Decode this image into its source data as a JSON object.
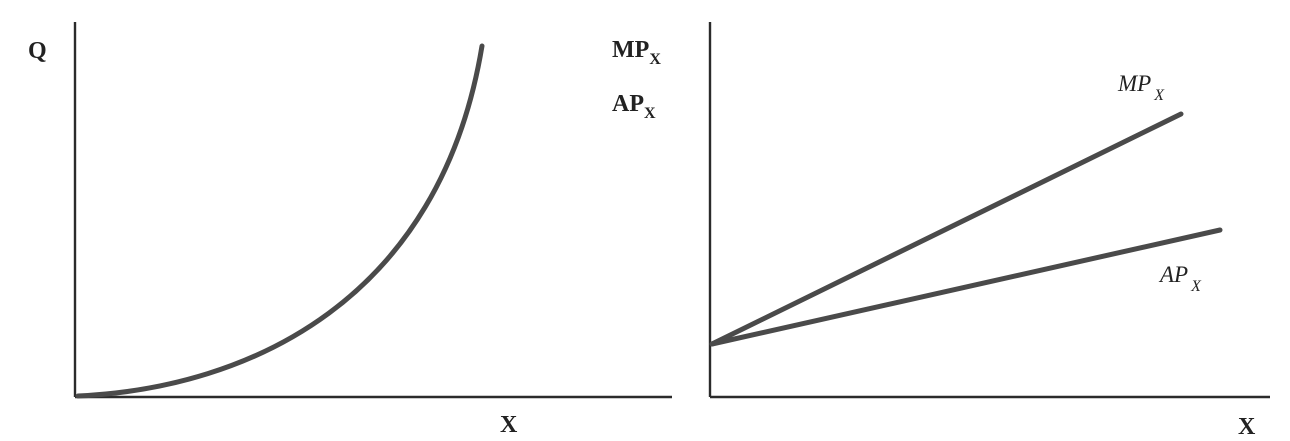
{
  "left_panel": {
    "y_axis_label": "Q",
    "x_axis_label": "X"
  },
  "right_panel": {
    "y_axis_label_1_main": "MP",
    "y_axis_label_1_sub": "X",
    "y_axis_label_2_main": "AP",
    "y_axis_label_2_sub": "X",
    "x_axis_label": "X",
    "mp_curve_label_main": "MP",
    "mp_curve_label_sub": "X",
    "ap_curve_label_main": "AP",
    "ap_curve_label_sub": "X"
  },
  "colors": {
    "axis": "#2b2b2b",
    "curve": "#4a4a4a"
  }
}
